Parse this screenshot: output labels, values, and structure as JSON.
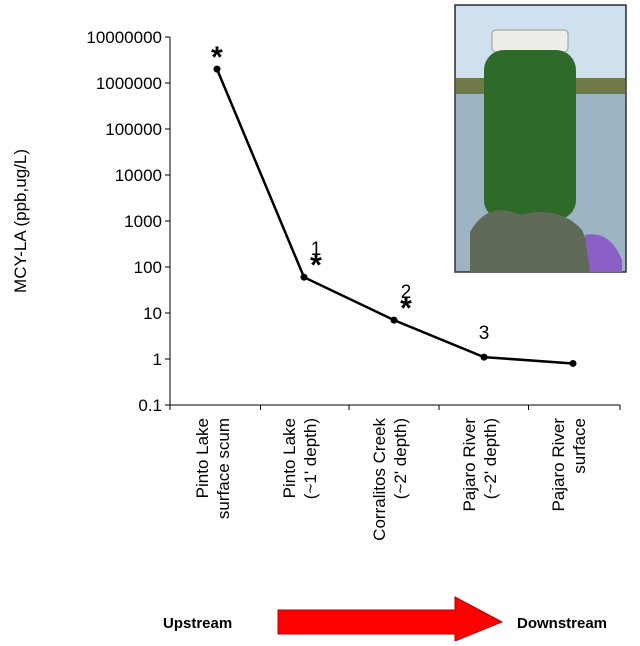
{
  "chart_data": {
    "type": "line",
    "y_label": "MCY-LA (ppb,ug/L)",
    "log_y": true,
    "ylim": [
      0.1,
      10000000
    ],
    "yticks": [
      0.1,
      1,
      10,
      100,
      1000,
      10000,
      100000,
      1000000,
      10000000
    ],
    "categories": [
      [
        "Pinto Lake",
        "surface scum"
      ],
      [
        "Pinto Lake",
        "(~1' depth)"
      ],
      [
        "Corralitos Creek",
        "(~2' depth)"
      ],
      [
        "Pajaro River",
        "(~2' depth)"
      ],
      [
        "Pajaro River",
        "surface"
      ]
    ],
    "values": [
      2000000,
      60,
      7,
      1.1,
      0.8
    ],
    "color": "#000000",
    "annotations": [
      {
        "text": "*",
        "category": 0
      },
      {
        "text": "1",
        "category": 1
      },
      {
        "text": "*",
        "category": 1
      },
      {
        "text": "2",
        "category": 2
      },
      {
        "text": "*",
        "category": 2
      },
      {
        "text": "3",
        "category": 3
      }
    ],
    "flow": {
      "from": "Upstream",
      "to": "Downstream",
      "color": "#ff0000"
    }
  }
}
